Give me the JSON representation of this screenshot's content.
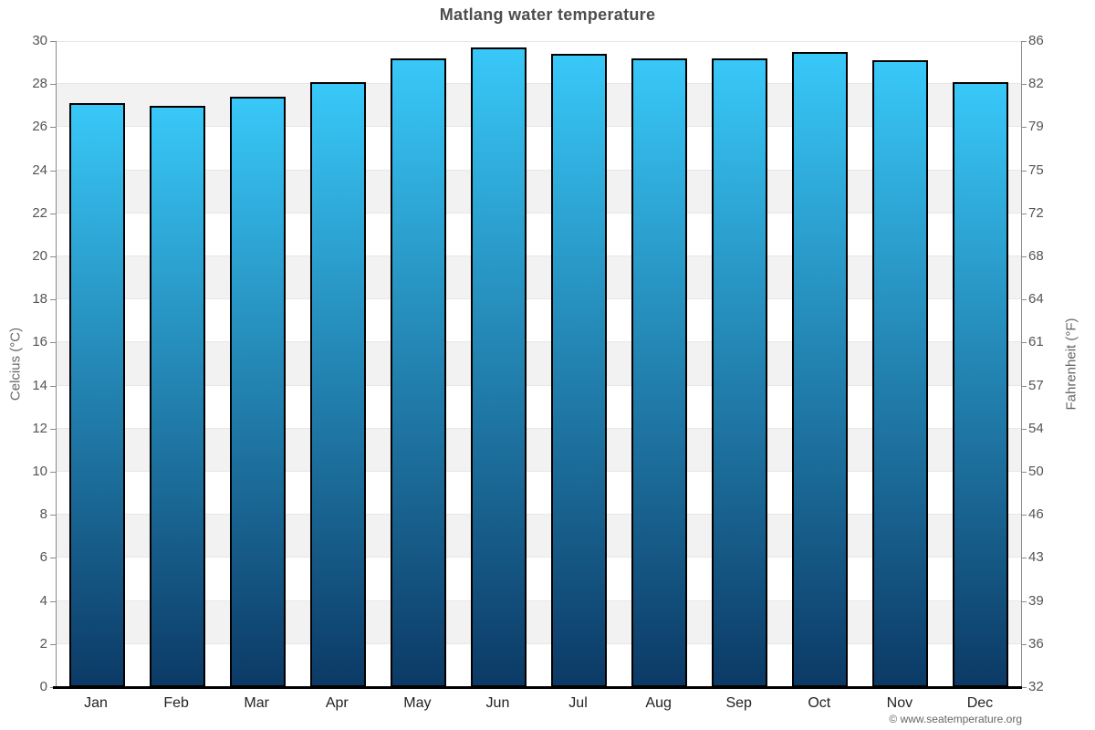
{
  "title": "Matlang water temperature",
  "watermark": "© www.seatemperature.org",
  "chart_data": {
    "type": "bar",
    "title": "Matlang water temperature",
    "categories": [
      "Jan",
      "Feb",
      "Mar",
      "Apr",
      "May",
      "Jun",
      "Jul",
      "Aug",
      "Sep",
      "Oct",
      "Nov",
      "Dec"
    ],
    "values_celsius": [
      27.1,
      27.0,
      27.4,
      28.1,
      29.2,
      29.7,
      29.4,
      29.2,
      29.2,
      29.5,
      29.1,
      28.1
    ],
    "ylabel_left": "Celcius (°C)",
    "ylabel_right": "Fahrenheit (°F)",
    "ylim_celsius": [
      0,
      30
    ],
    "left_ticks": [
      0,
      2,
      4,
      6,
      8,
      10,
      12,
      14,
      16,
      18,
      20,
      22,
      24,
      26,
      28,
      30
    ],
    "right_tick_labels": [
      "32",
      "36",
      "39",
      "43",
      "46",
      "50",
      "54",
      "57",
      "61",
      "64",
      "68",
      "72",
      "75",
      "79",
      "82",
      "86"
    ],
    "grid": "alternating-horizontal-bands",
    "legend": "none"
  },
  "colors": {
    "bar_gradient_top": "#38c8f8",
    "bar_gradient_bottom": "#0c3a66",
    "bar_border": "#000000",
    "band_shade": "#f2f2f2",
    "grid_line": "#e7e7e7",
    "axis_line": "#8a8a8a",
    "baseline": "#000000",
    "title_text": "#4d4d4d",
    "tick_text": "#555555",
    "category_text": "#222222",
    "axis_title_text": "#666666",
    "watermark_text": "#666666"
  }
}
